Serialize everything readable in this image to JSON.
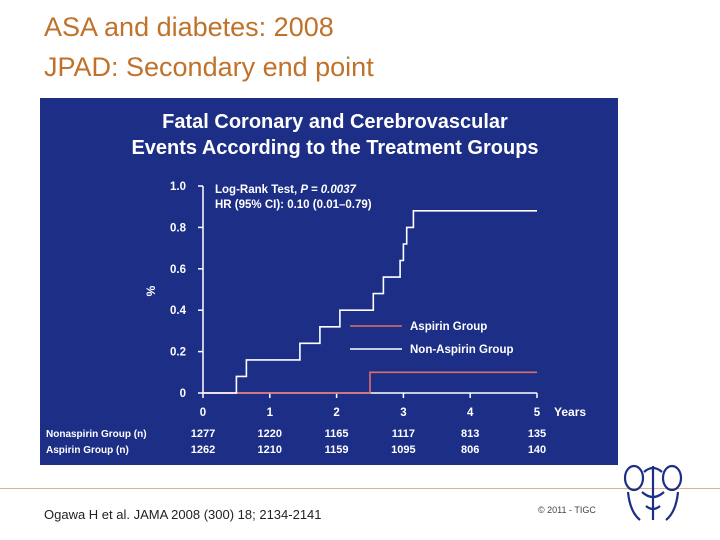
{
  "slide": {
    "title_line1": "ASA and diabetes: 2008",
    "title_line2": "JPAD: Secondary end point",
    "citation": "Ogawa H et al. JAMA 2008 (300) 18; 2134-2141",
    "copyright": "© 2011 - TIGC"
  },
  "colors": {
    "title": "#c0712a",
    "figure_bg": "#1c2e86",
    "figure_text": "#ffffff",
    "aspirin": "#e06d6d",
    "nonaspirin": "#ffffff",
    "logo": "#1c2e86"
  },
  "chart_data": {
    "type": "line",
    "title_line1": "Fatal Coronary and Cerebrovascular",
    "title_line2": "Events According to the Treatment Groups",
    "ylabel": "%",
    "xlabel": "Years",
    "xlim": [
      0,
      5
    ],
    "ylim": [
      0,
      1.0
    ],
    "x_ticks": [
      "0",
      "1",
      "2",
      "3",
      "4",
      "5"
    ],
    "y_ticks": [
      "0",
      "0.2",
      "0.4",
      "0.6",
      "0.8",
      "1.0"
    ],
    "annotation_line1": "Log-Rank Test, ",
    "annotation_p": "P = 0.0037",
    "annotation_line2": "HR (95% CI): 0.10 (0.01–0.79)",
    "series": [
      {
        "name": "Aspirin Group",
        "x": [
          0,
          2.5,
          2.5,
          5.0
        ],
        "y": [
          0,
          0,
          0.1,
          0.1
        ]
      },
      {
        "name": "Non-Aspirin Group",
        "x": [
          0,
          0.5,
          0.5,
          0.65,
          0.65,
          1.45,
          1.45,
          1.75,
          1.75,
          2.05,
          2.05,
          2.55,
          2.55,
          2.7,
          2.7,
          2.95,
          2.95,
          3.0,
          3.0,
          3.05,
          3.05,
          3.15,
          3.15,
          5.0
        ],
        "y": [
          0,
          0,
          0.08,
          0.08,
          0.16,
          0.16,
          0.24,
          0.24,
          0.32,
          0.32,
          0.4,
          0.4,
          0.48,
          0.48,
          0.56,
          0.56,
          0.64,
          0.64,
          0.72,
          0.72,
          0.8,
          0.8,
          0.88,
          0.88
        ]
      }
    ],
    "risk_table": {
      "time_points": [
        "0",
        "1",
        "2",
        "3",
        "4",
        "5"
      ],
      "rows": [
        {
          "label": "Nonaspirin Group (n)",
          "values": [
            "1277",
            "1220",
            "1165",
            "1117",
            "813",
            "135"
          ]
        },
        {
          "label": "Aspirin Group (n)",
          "values": [
            "1262",
            "1210",
            "1159",
            "1095",
            "806",
            "140"
          ]
        }
      ]
    }
  }
}
